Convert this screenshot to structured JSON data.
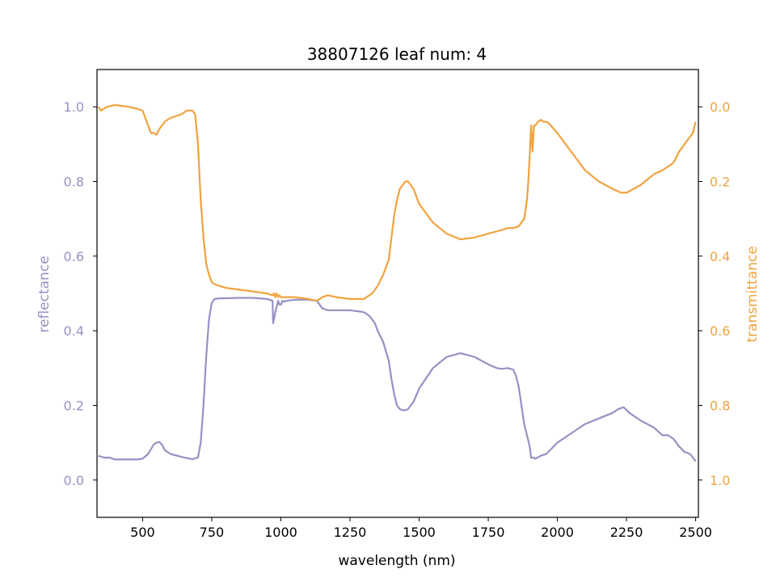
{
  "chart_data": {
    "type": "line",
    "title": "38807126 leaf num: 4",
    "xlabel": "wavelength (nm)",
    "ylabel_left": "reflectance",
    "ylabel_right": "transmittance",
    "xlim": [
      335,
      2510
    ],
    "ylim_left": [
      -0.1,
      1.1
    ],
    "ylim_right": [
      1.1,
      -0.1
    ],
    "right_axis_inverted": true,
    "grid": false,
    "x_ticks": [
      500,
      750,
      1000,
      1250,
      1500,
      1750,
      2000,
      2250,
      2500
    ],
    "y_ticks_left": [
      0.0,
      0.2,
      0.4,
      0.6,
      0.8,
      1.0
    ],
    "y_ticks_right": [
      0.0,
      0.2,
      0.4,
      0.6,
      0.8,
      1.0
    ],
    "colors": {
      "reflectance": "#9990c4",
      "transmittance": "#f0a33f",
      "axis": "#000000"
    },
    "series": [
      {
        "name": "reflectance",
        "axis": "left",
        "color": "#9990c4",
        "x": [
          340,
          360,
          380,
          400,
          420,
          450,
          480,
          500,
          520,
          540,
          550,
          560,
          570,
          580,
          600,
          650,
          680,
          700,
          710,
          720,
          730,
          740,
          750,
          760,
          780,
          800,
          850,
          900,
          950,
          970,
          972,
          975,
          980,
          990,
          995,
          1000,
          1005,
          1010,
          1020,
          1050,
          1100,
          1130,
          1140,
          1150,
          1170,
          1200,
          1250,
          1300,
          1320,
          1340,
          1350,
          1370,
          1390,
          1400,
          1410,
          1420,
          1430,
          1440,
          1450,
          1460,
          1470,
          1480,
          1500,
          1550,
          1600,
          1650,
          1700,
          1750,
          1780,
          1800,
          1820,
          1840,
          1850,
          1860,
          1870,
          1880,
          1890,
          1900,
          1905,
          1910,
          1915,
          1920,
          1940,
          1960,
          1980,
          2000,
          2050,
          2100,
          2150,
          2200,
          2220,
          2240,
          2260,
          2300,
          2350,
          2380,
          2400,
          2420,
          2440,
          2460,
          2480,
          2490,
          2500
        ],
        "values": [
          0.065,
          0.06,
          0.06,
          0.055,
          0.055,
          0.055,
          0.055,
          0.057,
          0.07,
          0.095,
          0.1,
          0.102,
          0.095,
          0.08,
          0.07,
          0.06,
          0.056,
          0.06,
          0.1,
          0.2,
          0.33,
          0.43,
          0.475,
          0.485,
          0.487,
          0.487,
          0.488,
          0.488,
          0.485,
          0.48,
          0.42,
          0.43,
          0.45,
          0.48,
          0.47,
          0.47,
          0.48,
          0.478,
          0.48,
          0.483,
          0.483,
          0.48,
          0.47,
          0.46,
          0.455,
          0.455,
          0.455,
          0.45,
          0.44,
          0.42,
          0.4,
          0.37,
          0.32,
          0.27,
          0.23,
          0.2,
          0.19,
          0.187,
          0.187,
          0.19,
          0.2,
          0.21,
          0.245,
          0.3,
          0.33,
          0.34,
          0.33,
          0.31,
          0.3,
          0.298,
          0.3,
          0.296,
          0.28,
          0.25,
          0.2,
          0.15,
          0.12,
          0.09,
          0.06,
          0.06,
          0.06,
          0.057,
          0.065,
          0.07,
          0.085,
          0.1,
          0.125,
          0.15,
          0.165,
          0.18,
          0.19,
          0.195,
          0.18,
          0.16,
          0.14,
          0.12,
          0.12,
          0.11,
          0.09,
          0.075,
          0.07,
          0.06,
          0.05
        ]
      },
      {
        "name": "transmittance",
        "axis": "right",
        "color": "#f0a33f",
        "x": [
          340,
          350,
          370,
          400,
          450,
          480,
          500,
          520,
          530,
          540,
          550,
          560,
          570,
          580,
          600,
          640,
          660,
          680,
          690,
          700,
          710,
          720,
          730,
          740,
          750,
          760,
          780,
          800,
          850,
          900,
          950,
          970,
          975,
          980,
          985,
          990,
          995,
          1000,
          1050,
          1100,
          1130,
          1150,
          1170,
          1200,
          1250,
          1300,
          1330,
          1350,
          1370,
          1390,
          1400,
          1410,
          1420,
          1430,
          1440,
          1450,
          1460,
          1470,
          1480,
          1500,
          1550,
          1600,
          1650,
          1700,
          1750,
          1800,
          1820,
          1840,
          1860,
          1880,
          1890,
          1895,
          1900,
          1905,
          1910,
          1915,
          1920,
          1930,
          1940,
          1950,
          1960,
          1970,
          2000,
          2050,
          2100,
          2150,
          2200,
          2230,
          2250,
          2300,
          2350,
          2380,
          2400,
          2420,
          2440,
          2460,
          2480,
          2490,
          2500
        ],
        "values": [
          0.0,
          0.01,
          0.0,
          -0.005,
          0.0,
          0.005,
          0.01,
          0.05,
          0.07,
          0.07,
          0.075,
          0.06,
          0.05,
          0.04,
          0.03,
          0.02,
          0.01,
          0.01,
          0.02,
          0.1,
          0.25,
          0.35,
          0.42,
          0.45,
          0.47,
          0.475,
          0.48,
          0.485,
          0.49,
          0.495,
          0.5,
          0.505,
          0.5,
          0.51,
          0.5,
          0.51,
          0.505,
          0.51,
          0.51,
          0.515,
          0.52,
          0.51,
          0.505,
          0.51,
          0.515,
          0.515,
          0.5,
          0.48,
          0.45,
          0.41,
          0.35,
          0.29,
          0.25,
          0.22,
          0.21,
          0.2,
          0.2,
          0.21,
          0.22,
          0.26,
          0.31,
          0.34,
          0.355,
          0.35,
          0.34,
          0.33,
          0.325,
          0.325,
          0.32,
          0.3,
          0.25,
          0.2,
          0.13,
          0.05,
          0.12,
          0.05,
          0.05,
          0.04,
          0.035,
          0.04,
          0.04,
          0.045,
          0.07,
          0.12,
          0.17,
          0.2,
          0.22,
          0.23,
          0.23,
          0.21,
          0.18,
          0.17,
          0.16,
          0.15,
          0.12,
          0.1,
          0.08,
          0.07,
          0.04
        ]
      }
    ]
  }
}
